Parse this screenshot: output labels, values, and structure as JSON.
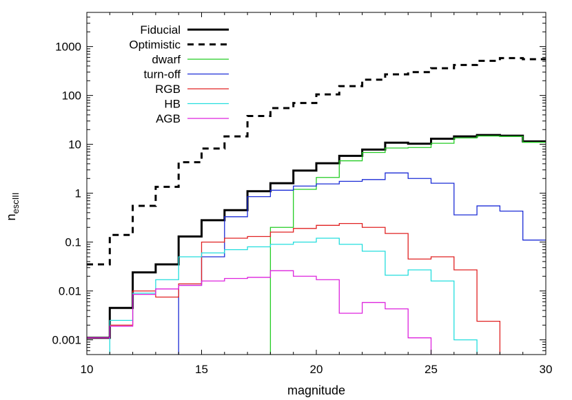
{
  "chart_data": {
    "type": "line",
    "xlabel": "magnitude",
    "ylabel": "n",
    "ylabel_sub": "escIII",
    "xlim": [
      10,
      30
    ],
    "ylim": [
      0.0005,
      5000
    ],
    "yscale": "log",
    "grid": false,
    "legend_position": "top-left",
    "x_ticks": [
      10,
      15,
      20,
      25,
      30
    ],
    "y_ticks": [
      0.001,
      0.01,
      0.1,
      1,
      10,
      100,
      1000
    ],
    "x_tick_labels": [
      "10",
      "15",
      "20",
      "25",
      "30"
    ],
    "y_tick_labels": [
      "0.001",
      "0.01",
      "0.1",
      "1",
      "10",
      "100",
      "1000"
    ],
    "x_edges": [
      10,
      11,
      12,
      13,
      14,
      15,
      16,
      17,
      18,
      19,
      20,
      21,
      22,
      23,
      24,
      25,
      26,
      27,
      28,
      29,
      30
    ],
    "series": [
      {
        "name": "Fiducial",
        "color": "#000000",
        "width": 3,
        "dash": "",
        "values": [
          0.0011,
          0.0045,
          0.024,
          0.035,
          0.13,
          0.28,
          0.45,
          1.1,
          1.6,
          2.9,
          4.1,
          5.8,
          7.8,
          10.8,
          10.3,
          13.0,
          14.5,
          15.5,
          15.0,
          11.5
        ]
      },
      {
        "name": "Optimistic",
        "color": "#000000",
        "width": 3,
        "dash": "9,7",
        "values": [
          0.035,
          0.14,
          0.55,
          1.35,
          4.3,
          8.2,
          14.5,
          38,
          55,
          70,
          105,
          155,
          210,
          270,
          300,
          360,
          420,
          510,
          580,
          550
        ]
      },
      {
        "name": "dwarf",
        "color": "#22cc22",
        "width": 1.3,
        "dash": "",
        "values": [
          null,
          null,
          null,
          null,
          null,
          null,
          null,
          null,
          0.2,
          1.2,
          2.1,
          4.6,
          6.8,
          8.4,
          8.6,
          10.5,
          13.5,
          14.8,
          14.5,
          11.0
        ]
      },
      {
        "name": "turn-off",
        "color": "#1a2bd6",
        "width": 1.3,
        "dash": "",
        "values": [
          null,
          null,
          null,
          null,
          0.013,
          0.05,
          0.33,
          0.85,
          1.15,
          1.4,
          1.55,
          1.75,
          1.9,
          2.6,
          2.0,
          1.6,
          0.36,
          0.55,
          0.43,
          0.11
        ]
      },
      {
        "name": "RGB",
        "color": "#e02020",
        "width": 1.3,
        "dash": "",
        "values": [
          0.0011,
          0.002,
          0.01,
          0.0075,
          0.014,
          0.1,
          0.12,
          0.13,
          0.16,
          0.19,
          0.22,
          0.24,
          0.2,
          0.15,
          0.045,
          0.05,
          0.027,
          0.0024,
          null,
          null
        ]
      },
      {
        "name": "HB",
        "color": "#22dddd",
        "width": 1.3,
        "dash": "",
        "values": [
          null,
          0.0025,
          0.009,
          0.017,
          0.05,
          0.06,
          0.07,
          0.08,
          0.09,
          0.1,
          0.12,
          0.09,
          0.065,
          0.021,
          0.027,
          0.016,
          0.001,
          null,
          null,
          null
        ]
      },
      {
        "name": "AGB",
        "color": "#dd22dd",
        "width": 1.3,
        "dash": "",
        "values": [
          0.0011,
          0.0019,
          0.0085,
          0.011,
          0.013,
          0.016,
          0.018,
          0.019,
          0.026,
          0.02,
          0.017,
          0.0035,
          0.0058,
          0.0043,
          0.0011,
          null,
          null,
          null,
          null,
          null
        ]
      }
    ]
  }
}
